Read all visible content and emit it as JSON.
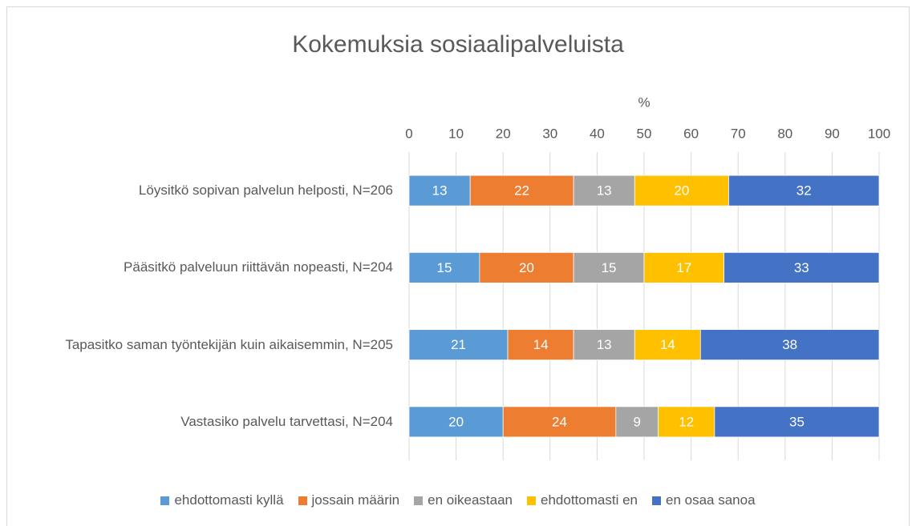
{
  "chart_data": {
    "type": "stacked_barh",
    "title": "Kokemuksia sosiaalipalveluista",
    "x_label": "%",
    "categories": [
      "Löysitkö sopivan palvelun helposti, N=206",
      "Pääsitkö palveluun riittävän nopeasti, N=204",
      "Tapasitko saman työntekijän kuin aikaisemmin, N=205",
      "Vastasiko palvelu tarvettasi, N=204"
    ],
    "series": [
      {
        "name": "ehdottomasti kyllä",
        "color": "#5b9bd5",
        "values": [
          13,
          15,
          21,
          20
        ]
      },
      {
        "name": "jossain määrin",
        "color": "#ed7d31",
        "values": [
          22,
          20,
          14,
          24
        ]
      },
      {
        "name": "en oikeastaan",
        "color": "#a5a5a5",
        "values": [
          13,
          15,
          13,
          9
        ]
      },
      {
        "name": "ehdottomasti en",
        "color": "#ffc000",
        "values": [
          20,
          17,
          14,
          12
        ]
      },
      {
        "name": "en osaa sanoa",
        "color": "#4472c4",
        "values": [
          32,
          33,
          38,
          35
        ]
      }
    ],
    "xlim": [
      0,
      100
    ],
    "xticks": [
      0,
      10,
      20,
      30,
      40,
      50,
      60,
      70,
      80,
      90,
      100
    ],
    "grid": true,
    "legend": "bottom"
  }
}
